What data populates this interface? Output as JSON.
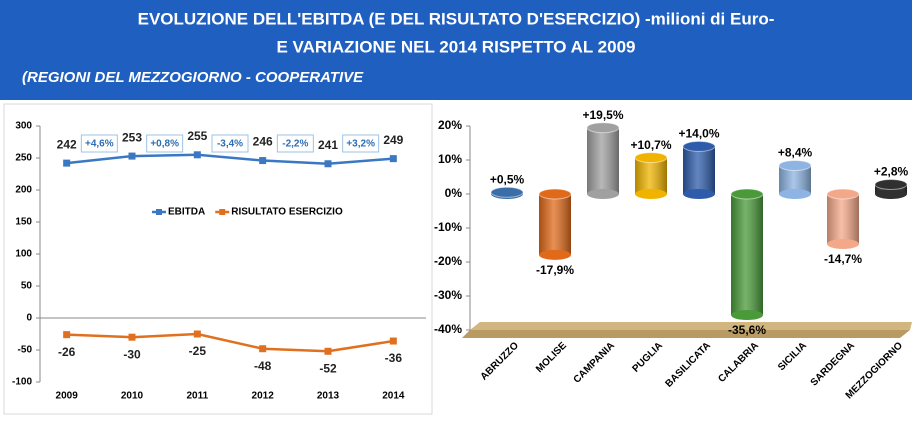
{
  "header": {
    "title_lines": [
      "EVOLUZIONE DELL'EBITDA (E DEL RISULTATO D'ESERCIZIO) -milioni di Euro-",
      "E VARIAZIONE NEL 2014 RISPETTO AL 2009"
    ],
    "subtitle": "(REGIONI DEL MEZZOGIORNO - COOPERATIVE"
  },
  "chart_data": [
    {
      "type": "line",
      "categories": [
        "2009",
        "2010",
        "2011",
        "2012",
        "2013",
        "2014"
      ],
      "series": [
        {
          "name": "EBITDA",
          "color": "#3a78c3",
          "values": [
            242,
            253,
            255,
            246,
            241,
            249
          ]
        },
        {
          "name": "RISULTATO ESERCIZIO",
          "color": "#e07020",
          "values": [
            -26,
            -30,
            -25,
            -48,
            -52,
            -36
          ]
        }
      ],
      "annotations": [
        "+4,6%",
        "+0,8%",
        "-3,4%",
        "-2,2%",
        "+3,2%"
      ],
      "ylim": [
        -100,
        300
      ],
      "yticks": [
        -100,
        -50,
        0,
        50,
        100,
        150,
        200,
        250,
        300
      ],
      "grid": false,
      "legend": "center"
    },
    {
      "type": "bar",
      "categories": [
        "ABRUZZO",
        "MOLISE",
        "CAMPANIA",
        "PUGLIA",
        "BASILICATA",
        "CALABRIA",
        "SICILIA",
        "SARDEGNA",
        "MEZZOGIORNO"
      ],
      "values": [
        0.5,
        -17.9,
        19.5,
        10.7,
        14.0,
        -35.6,
        8.4,
        -14.7,
        2.8
      ],
      "value_labels": [
        "+0,5%",
        "-17,9%",
        "+19,5%",
        "+10,7%",
        "+14,0%",
        "-35,6%",
        "+8,4%",
        "-14,7%",
        "+2,8%"
      ],
      "colors": [
        "#3a6ea8",
        "#e06a1a",
        "#a0a0a0",
        "#f0b400",
        "#2e5caa",
        "#4a9a3a",
        "#8db4e2",
        "#f4a88a",
        "#303030"
      ],
      "ylim": [
        -40,
        20
      ],
      "yticks": [
        {
          "value": -40,
          "label": "-40%"
        },
        {
          "value": -30,
          "label": "-30%"
        },
        {
          "value": -20,
          "label": "-20%"
        },
        {
          "value": -10,
          "label": "-10%"
        },
        {
          "value": 0,
          "label": "0%"
        },
        {
          "value": 10,
          "label": "10%"
        },
        {
          "value": 20,
          "label": "20%"
        }
      ],
      "grid": false
    }
  ]
}
